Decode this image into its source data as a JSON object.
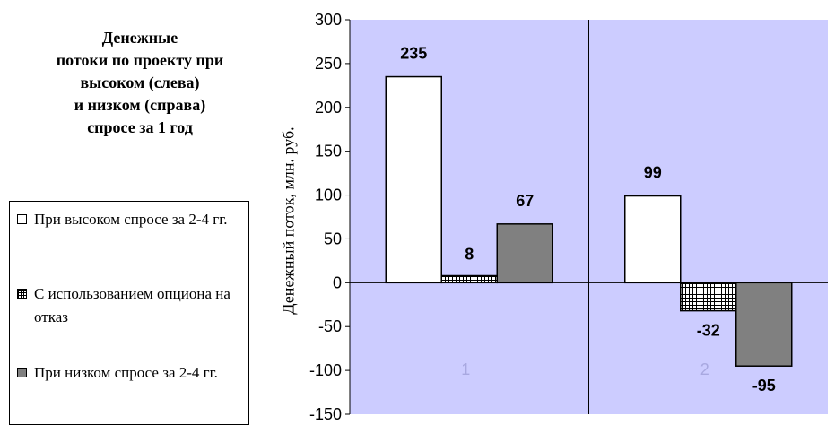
{
  "chart_data": {
    "type": "bar",
    "title_lines": [
      "Денежные",
      "потоки по проекту при",
      "высоком (слева)",
      "и  низком (справа)",
      "спросе за 1 год"
    ],
    "ylabel": "Денежный поток, млн. руб.",
    "ylim": [
      -150,
      300
    ],
    "yticks": [
      -150,
      -100,
      -50,
      0,
      50,
      100,
      150,
      200,
      250,
      300
    ],
    "categories": [
      "1",
      "2"
    ],
    "series": [
      {
        "name": "При высоком спросе за 2-4 гг.",
        "values": [
          235,
          99
        ],
        "color": "#ffffff",
        "pattern": "none"
      },
      {
        "name": "С использованием опциона на отказ",
        "values": [
          8,
          -32
        ],
        "color": "#ffffff",
        "pattern": "grid"
      },
      {
        "name": "При низком спросе за 2-4 гг.",
        "values": [
          67,
          -95
        ],
        "color": "#808080",
        "pattern": "none"
      }
    ],
    "data_labels": [
      [
        "235",
        "8",
        "67"
      ],
      [
        "99",
        "-32",
        "-95"
      ]
    ],
    "plot_background": "#ccccff",
    "legend_position": "left"
  }
}
